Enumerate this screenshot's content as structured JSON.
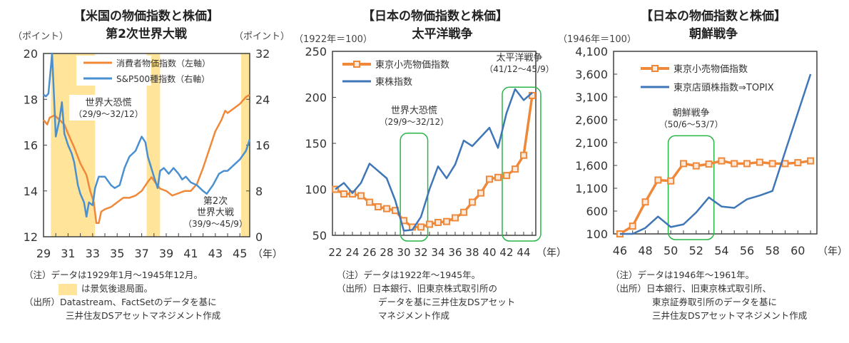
{
  "colors": {
    "orange": "#f0883a",
    "blue": "#4a90d0",
    "blue_dark": "#3f76b8",
    "recession": "#ffe49a",
    "highlight": "#28b447",
    "axis": "#404040"
  },
  "chart_data": [
    {
      "type": "line",
      "title": "【米国の物価指数と株価】",
      "subtitle": "第2次世界大戦",
      "ylabel_left": "（ポイント）",
      "ylabel_right": "（ポイント）",
      "xlabel": "（年）",
      "xlim": [
        29,
        45.8
      ],
      "ylim_left": [
        12,
        20
      ],
      "ylim_right": [
        0,
        32
      ],
      "yticks_left": [
        12,
        14,
        16,
        18,
        20
      ],
      "yticks_right": [
        0,
        8,
        16,
        24,
        32
      ],
      "xticks": [
        29,
        31,
        33,
        35,
        37,
        39,
        41,
        43,
        45
      ],
      "recession_periods": [
        [
          29.6,
          33.2
        ],
        [
          37.4,
          38.5
        ],
        [
          45.1,
          45.8
        ]
      ],
      "series": [
        {
          "name": "消費者物価指数（左軸）",
          "axis": "left",
          "color": "#f0883a",
          "x": [
            29.0,
            29.3,
            29.5,
            29.9,
            30.3,
            30.7,
            31.0,
            31.5,
            32.0,
            32.5,
            32.8,
            33.1,
            33.3,
            33.5,
            33.7,
            34.0,
            34.5,
            35.0,
            35.5,
            36.0,
            36.5,
            37.0,
            37.5,
            37.8,
            38.2,
            38.5,
            39.0,
            39.5,
            40.0,
            40.5,
            41.0,
            41.5,
            42.0,
            42.5,
            43.0,
            43.5,
            43.8,
            44.0,
            44.5,
            45.0,
            45.5,
            45.8
          ],
          "y": [
            17.1,
            16.9,
            17.2,
            17.3,
            17.1,
            16.9,
            16.5,
            15.9,
            15.2,
            14.7,
            14.0,
            13.5,
            12.6,
            12.6,
            13.1,
            13.2,
            13.3,
            13.5,
            13.7,
            13.7,
            13.8,
            14.0,
            14.4,
            14.6,
            14.3,
            14.1,
            14.0,
            13.8,
            13.9,
            14.0,
            14.0,
            14.3,
            15.0,
            15.8,
            16.6,
            17.1,
            17.5,
            17.4,
            17.6,
            17.8,
            18.1,
            18.2
          ]
        },
        {
          "name": "S&P500種指数（右軸）",
          "axis": "right",
          "color": "#4a90d0",
          "x": [
            29.0,
            29.2,
            29.4,
            29.7,
            30.0,
            30.3,
            30.5,
            30.7,
            31.0,
            31.3,
            31.5,
            31.8,
            32.0,
            32.3,
            32.5,
            32.7,
            33.0,
            33.2,
            33.5,
            34.0,
            34.5,
            34.8,
            35.2,
            35.6,
            36.0,
            36.5,
            37.0,
            37.3,
            37.5,
            38.0,
            38.3,
            38.5,
            38.8,
            39.2,
            39.6,
            40.0,
            40.3,
            40.6,
            41.0,
            41.5,
            42.0,
            42.3,
            42.8,
            43.3,
            43.7,
            44.0,
            44.5,
            45.0,
            45.5,
            45.8
          ],
          "y": [
            24.8,
            24.5,
            25,
            32,
            17.5,
            20.5,
            23.5,
            18,
            16,
            14.5,
            13,
            9,
            7.5,
            6,
            3.5,
            6,
            5.5,
            8.5,
            10.5,
            10.5,
            9,
            8.5,
            9,
            12,
            14,
            15,
            17.5,
            16.5,
            14,
            10.5,
            8.5,
            11.5,
            12,
            11,
            12,
            11,
            10,
            10.5,
            9.5,
            9,
            8,
            7.5,
            9,
            11,
            11.5,
            11.5,
            12.5,
            13.5,
            15,
            17
          ]
        }
      ],
      "annotations": [
        {
          "text": "世界大恐慌",
          "sub": "（29/9～32/12）"
        },
        {
          "text": "第2次",
          "text2": "世界大戦",
          "sub": "（39/9～45/9）"
        }
      ]
    },
    {
      "type": "line",
      "title": "【日本の物価指数と株価】",
      "subtitle": "太平洋戦争",
      "ylabel": "（1922年＝100）",
      "xlabel": "（年）",
      "xlim": [
        21.67,
        45.42
      ],
      "ylim": [
        50,
        250
      ],
      "yticks": [
        50,
        100,
        150,
        200,
        250
      ],
      "xticks": [
        22,
        24,
        26,
        28,
        30,
        32,
        34,
        36,
        38,
        40,
        42,
        44
      ],
      "series": [
        {
          "name": "東京小売物価指数",
          "color": "#f0883a",
          "markers": true,
          "x": [
            22,
            23,
            24,
            25,
            26,
            27,
            28,
            29,
            30,
            31,
            32,
            33,
            34,
            35,
            36,
            37,
            38,
            39,
            40,
            41,
            42,
            43,
            44,
            45
          ],
          "y": [
            100,
            95,
            95,
            93,
            86,
            81,
            79,
            77,
            66,
            59,
            59,
            62,
            64,
            65,
            69,
            75,
            86,
            96,
            111,
            113,
            115,
            122,
            137,
            202
          ]
        },
        {
          "name": "東株指数",
          "color": "#3f76b8",
          "x": [
            22,
            23,
            24,
            25,
            26,
            27,
            28,
            29,
            30,
            31,
            32,
            33,
            34,
            35,
            36,
            37,
            38,
            39,
            40,
            41,
            42,
            43,
            44,
            45
          ],
          "y": [
            100,
            107,
            96,
            107,
            128,
            120,
            112,
            88,
            55,
            56,
            70,
            100,
            125,
            112,
            127,
            153,
            147,
            157,
            167,
            145,
            183,
            209,
            197,
            205
          ]
        }
      ],
      "highlights": [
        {
          "from": 29.6,
          "to": 32.8,
          "text": "世界大恐慌",
          "sub": "（29/9～32/12）"
        },
        {
          "from": 41.5,
          "to": 46.0,
          "text": "太平洋戦争",
          "sub": "（41/12～45/9）"
        }
      ]
    },
    {
      "type": "line",
      "title": "【日本の物価指数と株価】",
      "subtitle": "朝鮮戦争",
      "ylabel": "（1946年＝100）",
      "xlabel": "（年）",
      "xlim": [
        45.5,
        61.5
      ],
      "ylim": [
        100,
        4100
      ],
      "yticks": [
        100,
        600,
        1100,
        1600,
        2100,
        2600,
        3100,
        3600,
        4100
      ],
      "ytick_labels": [
        "100",
        "600",
        "1,100",
        "1,600",
        "2,100",
        "2,600",
        "3,100",
        "3,600",
        "4,100"
      ],
      "xticks": [
        46,
        48,
        50,
        52,
        54,
        56,
        58,
        60
      ],
      "series": [
        {
          "name": "東京小売物価指数",
          "color": "#f0883a",
          "markers": true,
          "x": [
            46,
            47,
            48,
            49,
            50,
            51,
            52,
            53,
            54,
            55,
            56,
            57,
            58,
            59,
            60,
            61
          ],
          "y": [
            100,
            270,
            800,
            1280,
            1260,
            1640,
            1590,
            1630,
            1700,
            1640,
            1640,
            1670,
            1640,
            1640,
            1660,
            1700
          ]
        },
        {
          "name": "東京店頭株指数⇒TOPIX",
          "color": "#3f76b8",
          "x": [
            46,
            47,
            48,
            49,
            50,
            51,
            52,
            53,
            54,
            55,
            56,
            57,
            58,
            59,
            60,
            61
          ],
          "y": [
            100,
            100,
            230,
            480,
            250,
            310,
            570,
            900,
            700,
            670,
            860,
            940,
            1040,
            1900,
            2750,
            3600
          ]
        }
      ],
      "highlights": [
        {
          "from": 49.8,
          "to": 53.4,
          "text": "朝鮮戦争",
          "sub": "（50/6～53/7）"
        }
      ]
    }
  ],
  "notes": [
    {
      "lines": [
        "（注）データは1929年1月～1945年12月。",
        "は景気後退局面。",
        "（出所）Datastream、FactSetのデータを基に",
        "三井住友DSアセットマネジメント作成"
      ]
    },
    {
      "lines": [
        "（注）データは1922年～1945年。",
        "（出所）日本銀行、旧東京株式取引所の",
        "データを基に三井住友DSアセット",
        "マネジメント作成"
      ]
    },
    {
      "lines": [
        "（注）データは1946年～1961年。",
        "（出所）日本銀行、旧東京株式取引所、",
        "東京証券取引所のデータを基に",
        "三井住友DSアセットマネジメント作成"
      ]
    }
  ]
}
